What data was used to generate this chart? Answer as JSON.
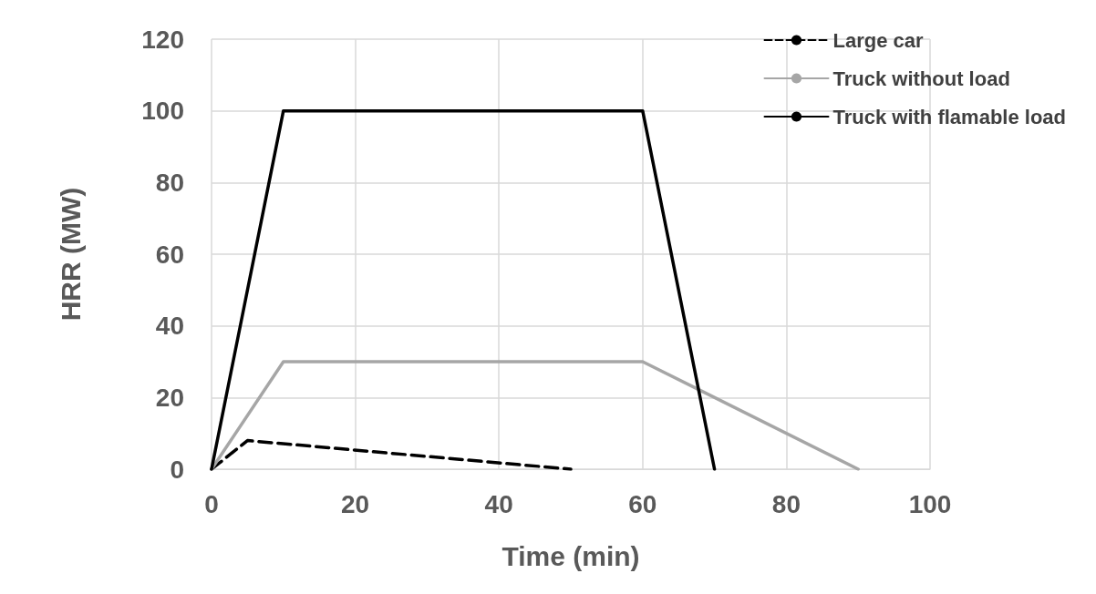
{
  "chart_data": {
    "type": "line",
    "xlabel": "Time (min)",
    "ylabel": "HRR (MW)",
    "xlim": [
      0,
      100
    ],
    "xticks": [
      0,
      20,
      40,
      60,
      80,
      100
    ],
    "ylim": [
      0,
      120
    ],
    "yticks": [
      0,
      20,
      40,
      60,
      80,
      100,
      120
    ],
    "grid": true,
    "legend": "top right",
    "marker": "none",
    "series": [
      {
        "name": "Large car",
        "color": "#000000",
        "line_style": "dashed",
        "x": [
          0,
          5,
          50
        ],
        "values": [
          0,
          8,
          0
        ]
      },
      {
        "name": "Truck without load",
        "color": "#a6a6a6",
        "line_style": "solid",
        "x": [
          0,
          10,
          60,
          90
        ],
        "values": [
          0,
          30,
          30,
          0
        ]
      },
      {
        "name": "Truck with flamable load",
        "color": "#000000",
        "line_style": "solid",
        "x": [
          0,
          10,
          60,
          70
        ],
        "values": [
          0,
          100,
          100,
          0
        ]
      }
    ]
  }
}
